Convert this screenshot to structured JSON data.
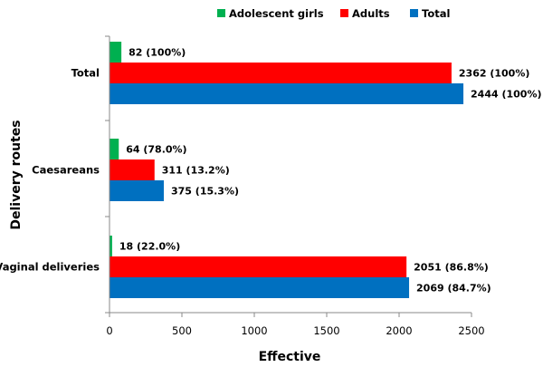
{
  "chart_data": {
    "type": "bar",
    "orientation": "horizontal",
    "title": "",
    "xlabel": "Effective",
    "ylabel": "Delivery routes",
    "xlim": [
      0,
      2500
    ],
    "x_ticks": [
      "0",
      "500",
      "1000",
      "1500",
      "2000",
      "2500"
    ],
    "grid": false,
    "legend_position": "top",
    "categories": [
      "Total",
      "Caesareans",
      "Vaginal deliveries"
    ],
    "series": [
      {
        "name": "Adolescent girls",
        "color": "#00b050",
        "values": [
          82,
          64,
          18
        ],
        "labels": [
          "82 (100%)",
          "64 (78.0%)",
          "18 (22.0%)"
        ]
      },
      {
        "name": "Adults",
        "color": "#ff0000",
        "values": [
          2362,
          311,
          2051
        ],
        "labels": [
          "2362 (100%)",
          "311 (13.2%)",
          "2051 (86.8%)"
        ]
      },
      {
        "name": "Total",
        "color": "#0070c0",
        "values": [
          2444,
          375,
          2069
        ],
        "labels": [
          "2444 (100%)",
          "375 (15.3%)",
          "2069 (84.7%)"
        ]
      }
    ]
  }
}
